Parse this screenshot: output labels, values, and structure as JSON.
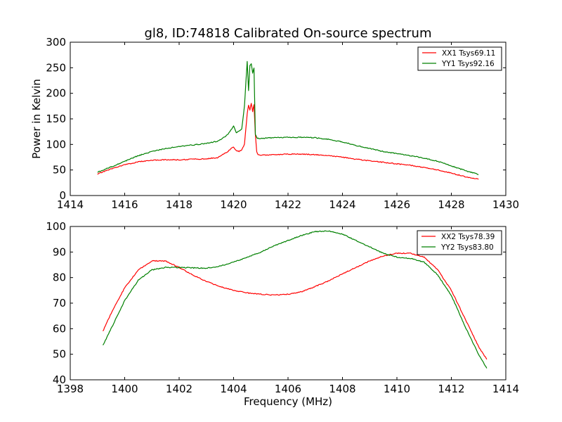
{
  "title": "gl8, ID:74818 Calibrated On-source spectrum",
  "chart_data": [
    {
      "type": "line",
      "ylabel": "Power in Kelvin",
      "xlabel": "",
      "xlim": [
        1414,
        1430
      ],
      "ylim": [
        0,
        300
      ],
      "xticks": [
        1414,
        1416,
        1418,
        1420,
        1422,
        1424,
        1426,
        1428,
        1430
      ],
      "yticks": [
        0,
        50,
        100,
        150,
        200,
        250,
        300
      ],
      "legend_position": "top-right",
      "grid": false,
      "series": [
        {
          "name": "XX1 Tsys69.11",
          "color": "#ff0000",
          "x": [
            1415.0,
            1415.5,
            1416.0,
            1416.5,
            1417.0,
            1417.5,
            1418.0,
            1418.5,
            1419.0,
            1419.4,
            1419.6,
            1419.8,
            1419.9,
            1420.0,
            1420.1,
            1420.2,
            1420.3,
            1420.4,
            1420.45,
            1420.5,
            1420.55,
            1420.6,
            1420.65,
            1420.7,
            1420.75,
            1420.8,
            1420.85,
            1420.9,
            1421.0,
            1421.5,
            1422.0,
            1422.5,
            1423.0,
            1423.5,
            1424.0,
            1424.5,
            1425.0,
            1425.5,
            1426.0,
            1426.5,
            1427.0,
            1427.5,
            1428.0,
            1428.5,
            1429.0
          ],
          "y": [
            42,
            52,
            60,
            66,
            69,
            70,
            70,
            71,
            72,
            74,
            80,
            86,
            92,
            95,
            88,
            86,
            89,
            100,
            130,
            160,
            177,
            168,
            180,
            165,
            178,
            120,
            85,
            80,
            79,
            80,
            81,
            81,
            80,
            78,
            75,
            71,
            68,
            65,
            62,
            59,
            55,
            50,
            44,
            37,
            32
          ]
        },
        {
          "name": "YY1 Tsys92.16",
          "color": "#008000",
          "x": [
            1415.0,
            1415.5,
            1416.0,
            1416.5,
            1417.0,
            1417.5,
            1418.0,
            1418.5,
            1419.0,
            1419.4,
            1419.6,
            1419.8,
            1419.9,
            1420.0,
            1420.1,
            1420.2,
            1420.3,
            1420.4,
            1420.45,
            1420.5,
            1420.55,
            1420.6,
            1420.65,
            1420.7,
            1420.75,
            1420.8,
            1420.85,
            1420.9,
            1421.0,
            1421.5,
            1422.0,
            1422.5,
            1423.0,
            1423.5,
            1424.0,
            1424.5,
            1425.0,
            1425.5,
            1426.0,
            1426.5,
            1427.0,
            1427.5,
            1428.0,
            1428.5,
            1429.0
          ],
          "y": [
            46,
            56,
            67,
            78,
            86,
            92,
            96,
            99,
            102,
            106,
            112,
            120,
            128,
            137,
            122,
            126,
            130,
            175,
            220,
            262,
            205,
            255,
            258,
            240,
            250,
            120,
            113,
            112,
            112,
            113,
            114,
            114,
            113,
            110,
            105,
            98,
            92,
            86,
            82,
            78,
            73,
            67,
            58,
            49,
            41
          ]
        }
      ]
    },
    {
      "type": "line",
      "xlabel": "Frequency (MHz)",
      "ylabel": "",
      "xlim": [
        1398,
        1414
      ],
      "ylim": [
        40,
        100
      ],
      "xticks": [
        1398,
        1400,
        1402,
        1404,
        1406,
        1408,
        1410,
        1412,
        1414
      ],
      "yticks": [
        40,
        50,
        60,
        70,
        80,
        90,
        100
      ],
      "legend_position": "top-right",
      "grid": false,
      "series": [
        {
          "name": "XX2 Tsys78.39",
          "color": "#ff0000",
          "x": [
            1399.2,
            1399.5,
            1400.0,
            1400.5,
            1401.0,
            1401.5,
            1402.0,
            1402.5,
            1403.0,
            1403.5,
            1404.0,
            1404.5,
            1405.0,
            1405.5,
            1406.0,
            1406.5,
            1407.0,
            1407.5,
            1408.0,
            1408.5,
            1409.0,
            1409.5,
            1410.0,
            1410.5,
            1411.0,
            1411.5,
            1412.0,
            1412.5,
            1413.0,
            1413.3
          ],
          "y": [
            59,
            66,
            76,
            83,
            86.5,
            86.5,
            84,
            81,
            78.5,
            76.5,
            75,
            74,
            73.5,
            73.2,
            73.5,
            74.5,
            76.5,
            78.8,
            81.5,
            84,
            86.5,
            88.5,
            89.5,
            89.5,
            88,
            83,
            75,
            64,
            53,
            48
          ]
        },
        {
          "name": "YY2 Tsys83.80",
          "color": "#008000",
          "x": [
            1399.2,
            1399.5,
            1400.0,
            1400.5,
            1401.0,
            1401.5,
            1402.0,
            1402.5,
            1403.0,
            1403.5,
            1404.0,
            1404.5,
            1405.0,
            1405.5,
            1406.0,
            1406.5,
            1407.0,
            1407.5,
            1408.0,
            1408.5,
            1409.0,
            1409.5,
            1410.0,
            1410.5,
            1411.0,
            1411.5,
            1412.0,
            1412.5,
            1413.0,
            1413.3
          ],
          "y": [
            53.5,
            60,
            71,
            79,
            83,
            84,
            84,
            83.8,
            83.7,
            84.5,
            86,
            88,
            90,
            92.5,
            94.5,
            96.5,
            98,
            98.2,
            97,
            94.5,
            92,
            89.5,
            88,
            87.5,
            86,
            81,
            73,
            61,
            50,
            44.5
          ]
        }
      ]
    }
  ]
}
